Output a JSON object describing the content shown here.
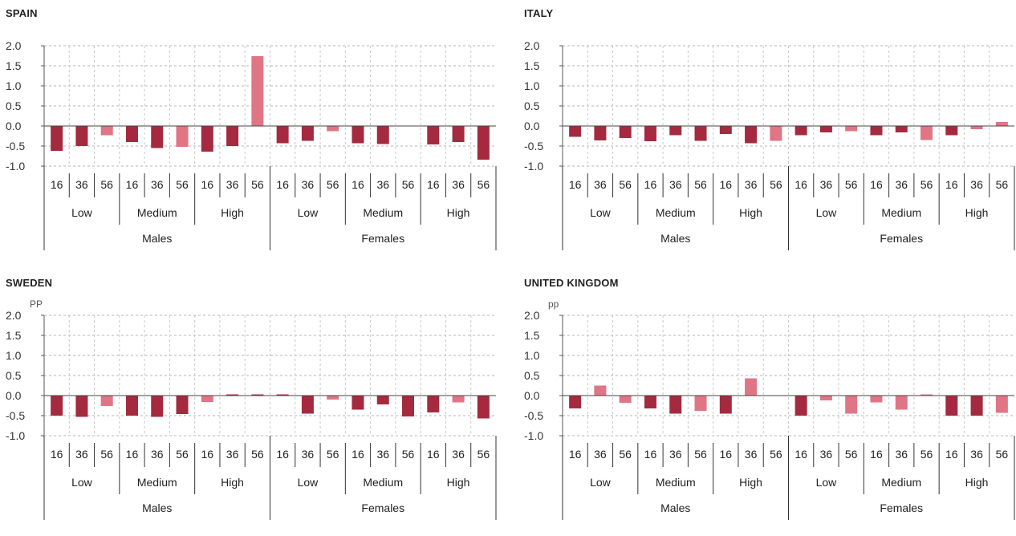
{
  "chart_data": [
    {
      "type": "bar",
      "title": "SPAIN",
      "ylabel": "",
      "ylim": [
        -1.0,
        2.0
      ],
      "yticks": [
        "2.0",
        "1.5",
        "1.0",
        "0.5",
        "0.0",
        "-0.5",
        "-1.0"
      ],
      "age_labels": [
        "16",
        "36",
        "56"
      ],
      "education_levels": [
        "Low",
        "Medium",
        "High"
      ],
      "sexes": [
        "Males",
        "Females"
      ],
      "colors": {
        "dark": "#a52a3f",
        "light": "#e07585"
      },
      "values": [
        -0.62,
        -0.5,
        -0.23,
        -0.4,
        -0.55,
        -0.52,
        -0.64,
        -0.5,
        1.74,
        -0.43,
        -0.37,
        -0.13,
        -0.43,
        -0.45,
        0.0,
        -0.46,
        -0.4,
        -0.84
      ],
      "shades": [
        "dark",
        "dark",
        "light",
        "dark",
        "dark",
        "light",
        "dark",
        "dark",
        "light",
        "dark",
        "dark",
        "light",
        "dark",
        "dark",
        "dark",
        "dark",
        "dark",
        "dark"
      ]
    },
    {
      "type": "bar",
      "title": "ITALY",
      "ylabel": "",
      "ylim": [
        -1.0,
        2.0
      ],
      "yticks": [
        "2.0",
        "1.5",
        "1.0",
        "0.5",
        "0.0",
        "-0.5",
        "-1.0"
      ],
      "age_labels": [
        "16",
        "36",
        "56"
      ],
      "education_levels": [
        "Low",
        "Medium",
        "High"
      ],
      "sexes": [
        "Males",
        "Females"
      ],
      "colors": {
        "dark": "#a52a3f",
        "light": "#e07585"
      },
      "values": [
        -0.27,
        -0.36,
        -0.3,
        -0.38,
        -0.23,
        -0.37,
        -0.2,
        -0.43,
        -0.37,
        -0.23,
        -0.16,
        -0.13,
        -0.23,
        -0.16,
        -0.35,
        -0.23,
        -0.08,
        0.1
      ],
      "shades": [
        "dark",
        "dark",
        "dark",
        "dark",
        "dark",
        "dark",
        "dark",
        "dark",
        "light",
        "dark",
        "dark",
        "light",
        "dark",
        "dark",
        "light",
        "dark",
        "light",
        "light"
      ]
    },
    {
      "type": "bar",
      "title": "SWEDEN",
      "ylabel": "PP",
      "ylim": [
        -1.0,
        2.0
      ],
      "yticks": [
        "2.0",
        "1.5",
        "1.0",
        "0.5",
        "0.0",
        "-0.5",
        "-1.0"
      ],
      "age_labels": [
        "16",
        "36",
        "56"
      ],
      "education_levels": [
        "Low",
        "Medium",
        "High"
      ],
      "sexes": [
        "Males",
        "Females"
      ],
      "colors": {
        "dark": "#a52a3f",
        "light": "#e07585"
      },
      "values": [
        -0.5,
        -0.53,
        -0.26,
        -0.5,
        -0.53,
        -0.46,
        -0.16,
        0.03,
        0.03,
        0.03,
        -0.45,
        -0.1,
        -0.35,
        -0.22,
        -0.52,
        -0.42,
        -0.17,
        -0.57
      ],
      "shades": [
        "dark",
        "dark",
        "light",
        "dark",
        "dark",
        "dark",
        "light",
        "dark",
        "dark",
        "dark",
        "dark",
        "light",
        "dark",
        "dark",
        "dark",
        "dark",
        "light",
        "dark"
      ]
    },
    {
      "type": "bar",
      "title": "UNITED KINGDOM",
      "ylabel": "pp",
      "ylim": [
        -1.0,
        2.0
      ],
      "yticks": [
        "2.0",
        "1.5",
        "1.0",
        "0.5",
        "0.0",
        "-0.5",
        "-1.0"
      ],
      "age_labels": [
        "16",
        "36",
        "56"
      ],
      "education_levels": [
        "Low",
        "Medium",
        "High"
      ],
      "sexes": [
        "Males",
        "Females"
      ],
      "colors": {
        "dark": "#a52a3f",
        "light": "#e07585"
      },
      "values": [
        -0.32,
        0.25,
        -0.18,
        -0.32,
        -0.45,
        -0.38,
        -0.45,
        0.43,
        0.0,
        -0.5,
        -0.12,
        -0.45,
        -0.17,
        -0.35,
        0.03,
        -0.5,
        -0.5,
        -0.43
      ],
      "shades": [
        "dark",
        "light",
        "light",
        "dark",
        "dark",
        "light",
        "dark",
        "light",
        "light",
        "dark",
        "light",
        "light",
        "light",
        "light",
        "light",
        "dark",
        "dark",
        "light"
      ]
    }
  ]
}
